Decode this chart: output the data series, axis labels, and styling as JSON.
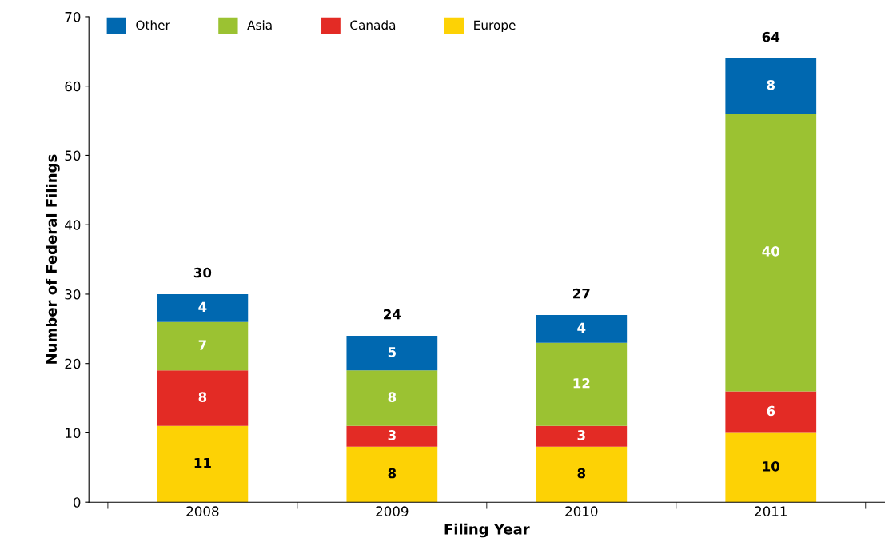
{
  "chart_data": {
    "type": "bar",
    "stacked": true,
    "xlabel": "Filing Year",
    "ylabel": "Number of Federal Filings",
    "categories": [
      "2008",
      "2009",
      "2010",
      "2011"
    ],
    "series": [
      {
        "name": "Europe",
        "color": "#fdd205",
        "values": [
          11,
          8,
          8,
          10
        ]
      },
      {
        "name": "Canada",
        "color": "#e32b25",
        "values": [
          8,
          3,
          3,
          6
        ]
      },
      {
        "name": "Asia",
        "color": "#9bc232",
        "values": [
          7,
          8,
          12,
          40
        ]
      },
      {
        "name": "Other",
        "color": "#0068b0",
        "values": [
          4,
          5,
          4,
          8
        ]
      }
    ],
    "totals": [
      "30",
      "24",
      "27",
      "64"
    ],
    "data_labels": true,
    "ylim": [
      0,
      70
    ],
    "yticks": [
      0,
      10,
      20,
      30,
      40,
      50,
      60,
      70
    ],
    "grid": false,
    "legend": "top"
  }
}
